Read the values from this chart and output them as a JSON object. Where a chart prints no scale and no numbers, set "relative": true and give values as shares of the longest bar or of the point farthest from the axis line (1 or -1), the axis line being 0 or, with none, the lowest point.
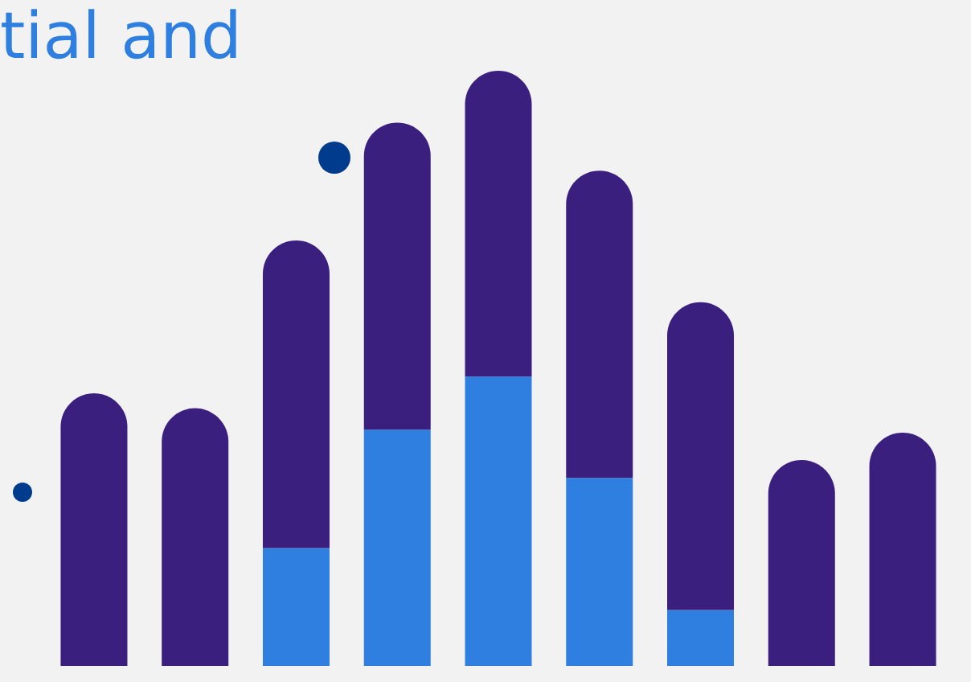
{
  "chart_data": {
    "type": "bar",
    "title": "tial and",
    "stacked": true,
    "relative": true,
    "categories": [
      null,
      null,
      null,
      null,
      null,
      null,
      null,
      null,
      null
    ],
    "series": [
      {
        "color": "#2e7fe0",
        "values": [
          0,
          0,
          0.198,
          0.397,
          0.486,
          0.316,
          0.094,
          0,
          0
        ]
      },
      {
        "color": "#3a1f7f",
        "values": [
          0.458,
          0.433,
          0.517,
          0.516,
          0.514,
          0.516,
          0.517,
          0.346,
          0.392
        ]
      }
    ]
  }
}
